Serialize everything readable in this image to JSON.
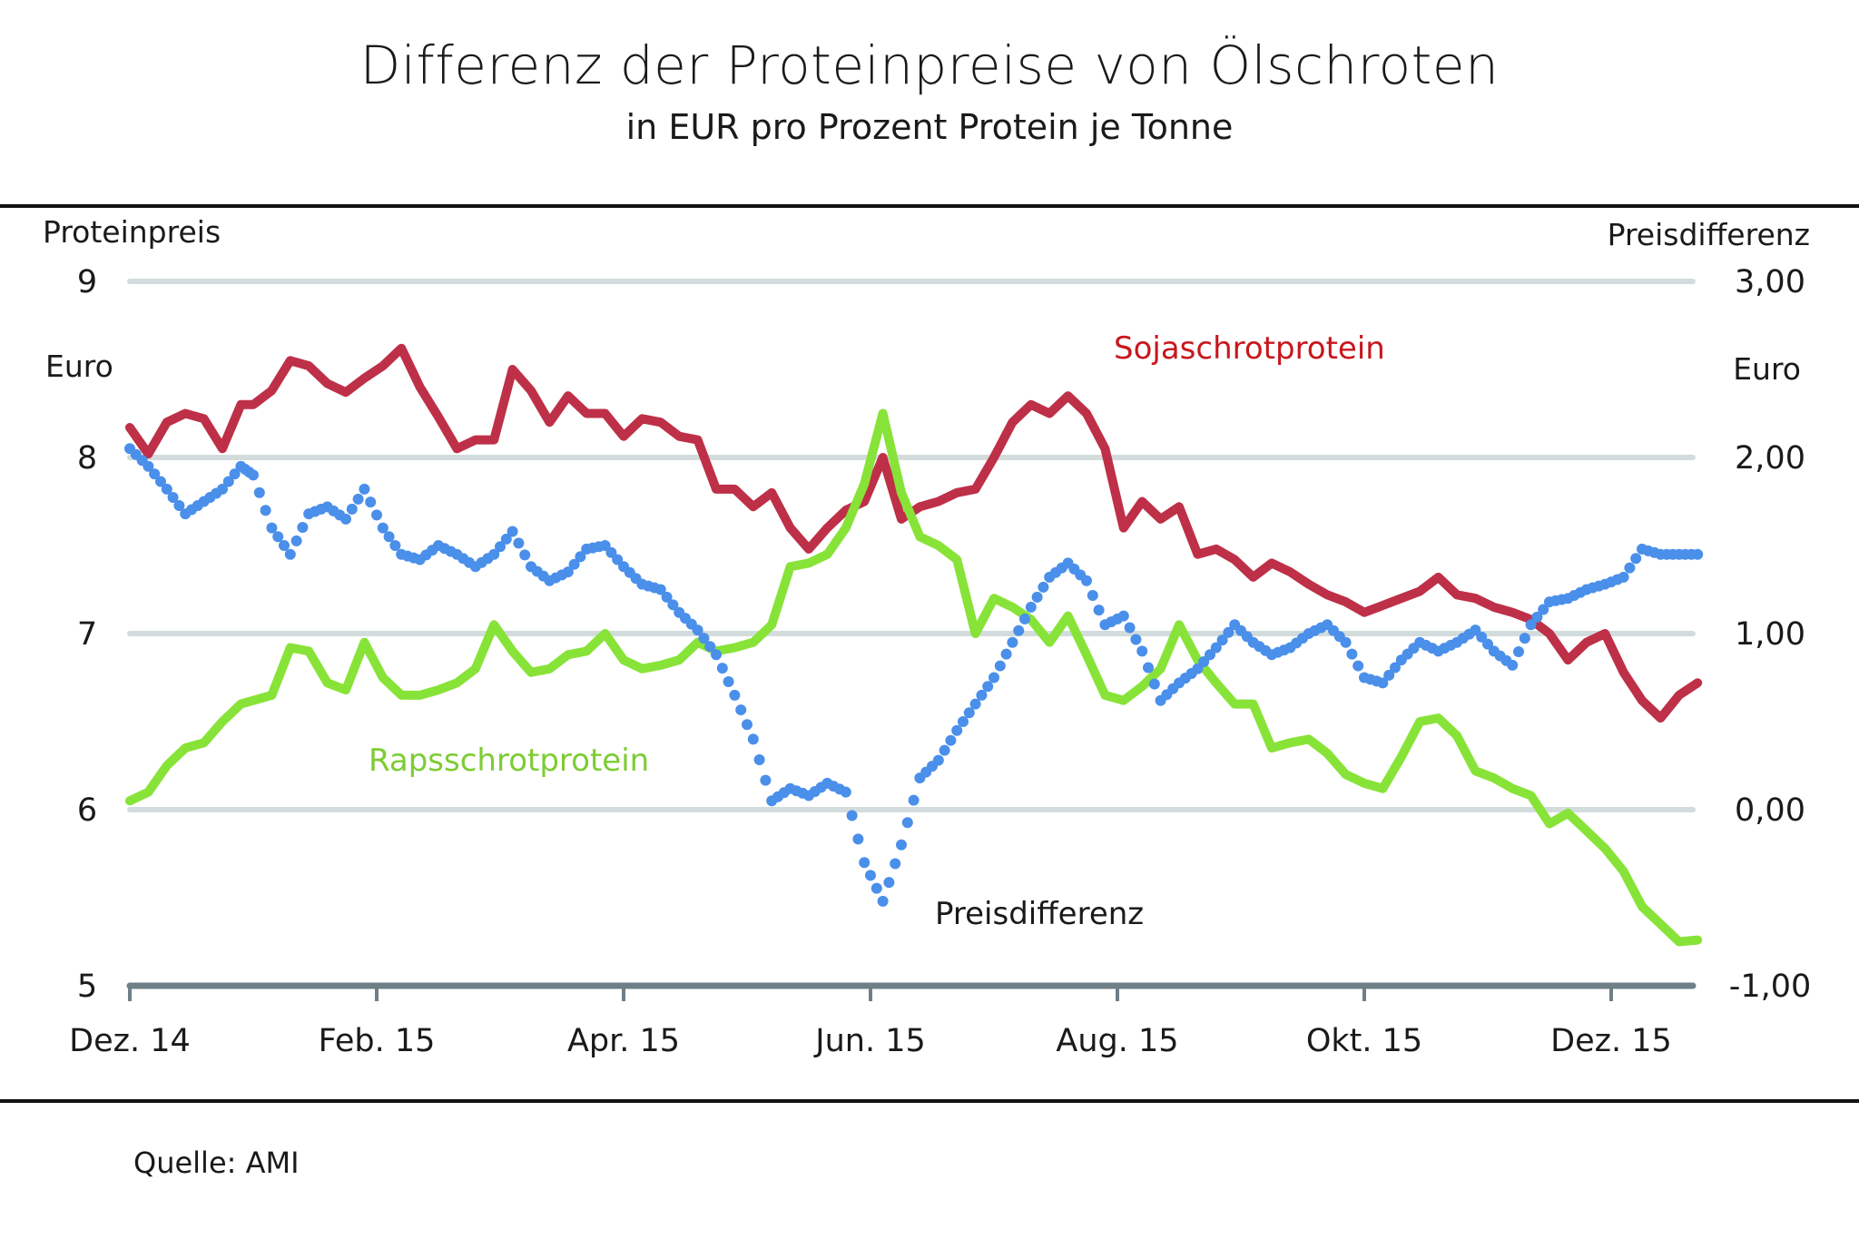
{
  "header": {
    "title": "Differenz der Proteinpreise von Ölschroten",
    "subtitle": "in EUR pro Prozent Protein je Tonne"
  },
  "footer": {
    "source": "Quelle: AMI"
  },
  "chart_data": {
    "type": "line",
    "title": "Differenz der Proteinpreise von Ölschroten",
    "subtitle": "in EUR pro Prozent Protein je Tonne",
    "xlabel": "",
    "ylabel_left": "Proteinpreis",
    "ylabel_left_unit": "Euro",
    "ylabel_right": "Preisdifferenz",
    "ylabel_right_unit": "Euro",
    "ylim_left": [
      5,
      9
    ],
    "ylim_right": [
      -1,
      3
    ],
    "yticks_left": [
      "5",
      "6",
      "7",
      "8",
      "9"
    ],
    "yticks_right": [
      "-1,00",
      "0,00",
      "1,00",
      "2,00",
      "3,00"
    ],
    "xticks": [
      "Dez. 14",
      "Feb. 15",
      "Apr. 15",
      "Jun. 15",
      "Aug. 15",
      "Okt. 15",
      "Dez. 15"
    ],
    "x_range_months": [
      0,
      12.7
    ],
    "grid": true,
    "series": [
      {
        "name": "Sojaschrotprotein",
        "axis": "left",
        "style": "line",
        "color": "#BE3048",
        "label_color": "#C8161D",
        "x_months": [
          0,
          0.15,
          0.3,
          0.45,
          0.6,
          0.75,
          0.9,
          1.0,
          1.15,
          1.3,
          1.45,
          1.6,
          1.75,
          1.9,
          2.05,
          2.2,
          2.35,
          2.5,
          2.65,
          2.8,
          2.95,
          3.1,
          3.25,
          3.4,
          3.55,
          3.7,
          3.85,
          4.0,
          4.15,
          4.3,
          4.45,
          4.6,
          4.75,
          4.9,
          5.05,
          5.2,
          5.35,
          5.5,
          5.65,
          5.8,
          5.95,
          6.1,
          6.25,
          6.4,
          6.55,
          6.7,
          6.85,
          7.0,
          7.15,
          7.3,
          7.45,
          7.6,
          7.75,
          7.9,
          8.05,
          8.2,
          8.35,
          8.5,
          8.65,
          8.8,
          8.95,
          9.1,
          9.25,
          9.4,
          9.55,
          9.7,
          9.85,
          10.0,
          10.15,
          10.3,
          10.45,
          10.6,
          10.75,
          10.9,
          11.05,
          11.2,
          11.35,
          11.5,
          11.65,
          11.8,
          11.95,
          12.1,
          12.25,
          12.4,
          12.55,
          12.7
        ],
        "values": [
          8.17,
          8.02,
          8.2,
          8.25,
          8.22,
          8.05,
          8.3,
          8.3,
          8.38,
          8.55,
          8.52,
          8.42,
          8.37,
          8.45,
          8.52,
          8.62,
          8.4,
          8.23,
          8.05,
          8.1,
          8.1,
          8.5,
          8.38,
          8.2,
          8.35,
          8.25,
          8.25,
          8.12,
          8.22,
          8.2,
          8.12,
          8.1,
          7.82,
          7.82,
          7.72,
          7.8,
          7.6,
          7.48,
          7.6,
          7.7,
          7.75,
          8.0,
          7.65,
          7.72,
          7.75,
          7.8,
          7.82,
          8.0,
          8.2,
          8.3,
          8.25,
          8.35,
          8.25,
          8.05,
          7.6,
          7.75,
          7.65,
          7.72,
          7.45,
          7.48,
          7.42,
          7.32,
          7.4,
          7.35,
          7.28,
          7.22,
          7.18,
          7.12,
          7.16,
          7.2,
          7.24,
          7.32,
          7.22,
          7.2,
          7.15,
          7.12,
          7.08,
          7.0,
          6.85,
          6.95,
          7.0,
          6.78,
          6.62,
          6.52,
          6.65,
          6.72
        ]
      },
      {
        "name": "Rapsschrotprotein",
        "axis": "left",
        "style": "line",
        "color": "#88E338",
        "label_color": "#7DCC33",
        "x_months": [
          0,
          0.15,
          0.3,
          0.45,
          0.6,
          0.75,
          0.9,
          1.0,
          1.15,
          1.3,
          1.45,
          1.6,
          1.75,
          1.9,
          2.05,
          2.2,
          2.35,
          2.5,
          2.65,
          2.8,
          2.95,
          3.1,
          3.25,
          3.4,
          3.55,
          3.7,
          3.85,
          4.0,
          4.15,
          4.3,
          4.45,
          4.6,
          4.75,
          4.9,
          5.05,
          5.2,
          5.35,
          5.5,
          5.65,
          5.8,
          5.95,
          6.1,
          6.25,
          6.4,
          6.55,
          6.7,
          6.85,
          7.0,
          7.15,
          7.3,
          7.45,
          7.6,
          7.75,
          7.9,
          8.05,
          8.2,
          8.35,
          8.5,
          8.65,
          8.8,
          8.95,
          9.1,
          9.25,
          9.4,
          9.55,
          9.7,
          9.85,
          10.0,
          10.15,
          10.3,
          10.45,
          10.6,
          10.75,
          10.9,
          11.05,
          11.2,
          11.35,
          11.5,
          11.65,
          11.8,
          11.95,
          12.1,
          12.25,
          12.4,
          12.55,
          12.7
        ],
        "values": [
          6.05,
          6.1,
          6.25,
          6.35,
          6.38,
          6.5,
          6.6,
          6.62,
          6.65,
          6.92,
          6.9,
          6.72,
          6.68,
          6.95,
          6.75,
          6.65,
          6.65,
          6.68,
          6.72,
          6.8,
          7.05,
          6.9,
          6.78,
          6.8,
          6.88,
          6.9,
          7.0,
          6.85,
          6.8,
          6.82,
          6.85,
          6.95,
          6.9,
          6.92,
          6.95,
          7.05,
          7.38,
          7.4,
          7.45,
          7.6,
          7.85,
          8.25,
          7.8,
          7.55,
          7.5,
          7.42,
          7.0,
          7.2,
          7.15,
          7.08,
          6.95,
          7.1,
          6.88,
          6.65,
          6.62,
          6.7,
          6.8,
          7.05,
          6.85,
          6.72,
          6.6,
          6.6,
          6.35,
          6.38,
          6.4,
          6.32,
          6.2,
          6.15,
          6.12,
          6.3,
          6.5,
          6.52,
          6.42,
          6.22,
          6.18,
          6.12,
          6.08,
          5.92,
          5.98,
          5.88,
          5.78,
          5.65,
          5.45,
          5.35,
          5.25,
          5.26
        ]
      },
      {
        "name": "Preisdifferenz",
        "axis": "right",
        "style": "dotted",
        "color": "#4A8FEA",
        "label_color": "#1a1a1a",
        "x_months": [
          0,
          0.15,
          0.3,
          0.45,
          0.6,
          0.75,
          0.9,
          1.0,
          1.15,
          1.3,
          1.45,
          1.6,
          1.75,
          1.9,
          2.05,
          2.2,
          2.35,
          2.5,
          2.65,
          2.8,
          2.95,
          3.1,
          3.25,
          3.4,
          3.55,
          3.7,
          3.85,
          4.0,
          4.15,
          4.3,
          4.45,
          4.6,
          4.75,
          4.9,
          5.05,
          5.2,
          5.35,
          5.5,
          5.65,
          5.8,
          5.95,
          6.1,
          6.25,
          6.4,
          6.55,
          6.7,
          6.85,
          7.0,
          7.15,
          7.3,
          7.45,
          7.6,
          7.75,
          7.9,
          8.05,
          8.2,
          8.35,
          8.5,
          8.65,
          8.8,
          8.95,
          9.1,
          9.25,
          9.4,
          9.55,
          9.7,
          9.85,
          10.0,
          10.15,
          10.3,
          10.45,
          10.6,
          10.75,
          10.9,
          11.05,
          11.2,
          11.35,
          11.5,
          11.65,
          11.8,
          11.95,
          12.1,
          12.25,
          12.4,
          12.55,
          12.7
        ],
        "values": [
          2.05,
          1.95,
          1.82,
          1.68,
          1.75,
          1.82,
          1.95,
          1.9,
          1.6,
          1.45,
          1.68,
          1.72,
          1.65,
          1.82,
          1.6,
          1.45,
          1.42,
          1.5,
          1.45,
          1.38,
          1.45,
          1.58,
          1.38,
          1.3,
          1.35,
          1.48,
          1.5,
          1.38,
          1.28,
          1.25,
          1.12,
          1.02,
          0.88,
          0.65,
          0.4,
          0.05,
          0.12,
          0.08,
          0.15,
          0.1,
          -0.3,
          -0.52,
          -0.2,
          0.18,
          0.28,
          0.45,
          0.6,
          0.75,
          0.95,
          1.15,
          1.32,
          1.4,
          1.3,
          1.05,
          1.1,
          0.9,
          0.62,
          0.72,
          0.8,
          0.92,
          1.05,
          0.95,
          0.88,
          0.92,
          1.0,
          1.05,
          0.95,
          0.75,
          0.72,
          0.85,
          0.95,
          0.9,
          0.95,
          1.02,
          0.9,
          0.82,
          1.05,
          1.18,
          1.2,
          1.25,
          1.28,
          1.32,
          1.48,
          1.45,
          1.45,
          1.45
        ]
      }
    ]
  }
}
